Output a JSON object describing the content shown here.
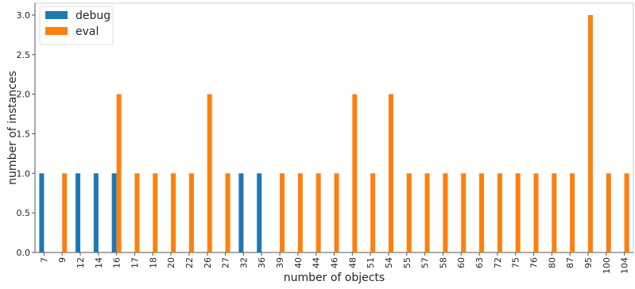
{
  "chart_data": {
    "type": "bar",
    "xlabel": "number of objects",
    "ylabel": "number of instances",
    "ylim": [
      0,
      3.15
    ],
    "yticks": [
      "0.0",
      "0.5",
      "1.0",
      "1.5",
      "2.0",
      "2.5",
      "3.0"
    ],
    "grid": false,
    "legend_position": "top-left",
    "categories": [
      "7",
      "9",
      "12",
      "14",
      "16",
      "17",
      "18",
      "20",
      "22",
      "26",
      "27",
      "32",
      "36",
      "39",
      "40",
      "44",
      "46",
      "48",
      "51",
      "54",
      "55",
      "57",
      "58",
      "60",
      "63",
      "72",
      "75",
      "76",
      "80",
      "87",
      "95",
      "100",
      "104"
    ],
    "series": [
      {
        "name": "debug",
        "color": "#1f77b4",
        "values": [
          1,
          0,
          1,
          1,
          1,
          0,
          0,
          0,
          0,
          0,
          0,
          1,
          1,
          0,
          0,
          0,
          0,
          0,
          0,
          0,
          0,
          0,
          0,
          0,
          0,
          0,
          0,
          0,
          0,
          0,
          0,
          0,
          0
        ]
      },
      {
        "name": "eval",
        "color": "#ff7f0e",
        "values": [
          0,
          1,
          0,
          0,
          2,
          1,
          1,
          1,
          1,
          2,
          1,
          0,
          0,
          1,
          1,
          1,
          1,
          2,
          1,
          2,
          1,
          1,
          1,
          1,
          1,
          1,
          1,
          1,
          1,
          1,
          3,
          1,
          1
        ]
      }
    ]
  }
}
